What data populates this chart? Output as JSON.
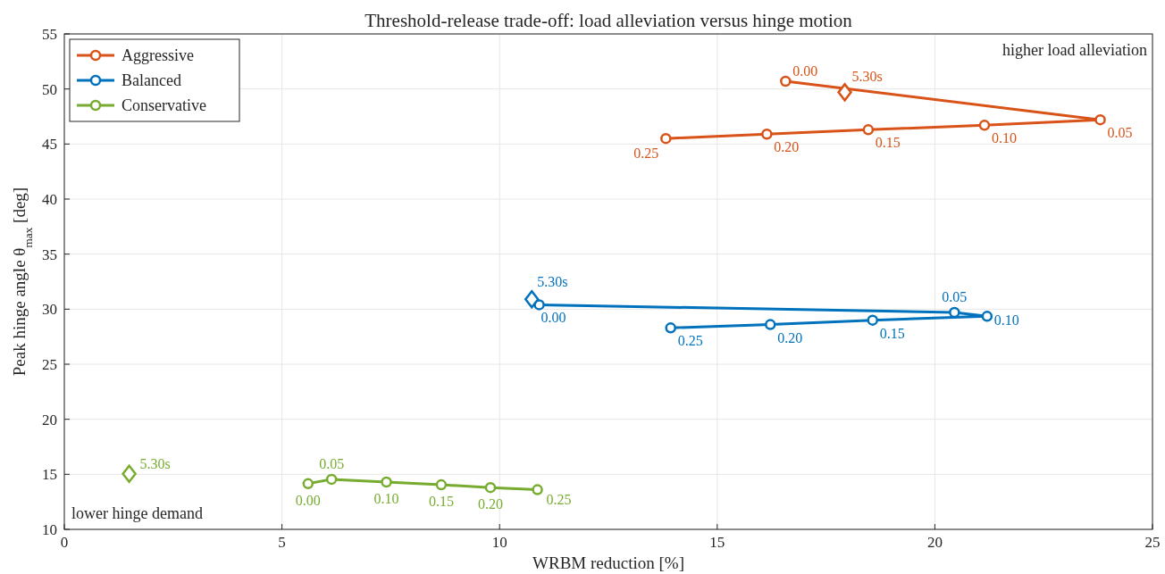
{
  "chart_data": {
    "type": "line",
    "title": "Threshold-release trade-off: load alleviation versus hinge motion",
    "xlabel": "WRBM reduction [%]",
    "ylabel": "Peak hinge angle θ$_{max}$ [deg]",
    "xlim": [
      0,
      25
    ],
    "xticks": [
      0,
      5,
      10,
      15,
      20,
      25
    ],
    "ylim": [
      10,
      55
    ],
    "yticks": [
      10,
      15,
      20,
      25,
      30,
      35,
      40,
      45,
      50,
      55
    ],
    "grid": true,
    "legend": "top left",
    "marker": "circle",
    "line_style": "solid",
    "series": [
      {
        "name": "Aggressive",
        "color": "#d95319",
        "x": [
          16.57,
          23.8,
          21.14,
          18.47,
          16.14,
          13.82
        ],
        "values": [
          50.7,
          47.2,
          46.7,
          46.3,
          45.9,
          45.5
        ]
      },
      {
        "name": "Balanced",
        "color": "#0072bd",
        "x": [
          10.91,
          20.45,
          21.2,
          18.57,
          16.22,
          13.93
        ],
        "values": [
          30.4,
          29.7,
          29.35,
          29.0,
          28.6,
          28.3
        ]
      },
      {
        "name": "Conservative",
        "color": "#77ac30",
        "x": [
          5.6,
          6.14,
          7.4,
          8.66,
          9.79,
          10.87
        ],
        "values": [
          14.15,
          14.55,
          14.3,
          14.05,
          13.8,
          13.6
        ]
      },
      {
        "type": "scatter",
        "marker": "diamond",
        "color": "#d95319",
        "x": [
          17.93
        ],
        "values": [
          49.7
        ]
      },
      {
        "type": "scatter",
        "marker": "diamond",
        "color": "#0072bd",
        "x": [
          10.74
        ],
        "values": [
          30.9
        ]
      },
      {
        "type": "scatter",
        "marker": "diamond",
        "color": "#77ac30",
        "x": [
          1.49
        ],
        "values": [
          15.05
        ]
      }
    ],
    "annotations": [
      {
        "text": "0.00",
        "x": 16.57,
        "y": 50.7
      },
      {
        "text": "0.05",
        "x": 23.8,
        "y": 47.2
      },
      {
        "text": "0.10",
        "x": 21.14,
        "y": 46.7
      },
      {
        "text": "0.15",
        "x": 18.47,
        "y": 46.3
      },
      {
        "text": "0.20",
        "x": 16.14,
        "y": 45.9
      },
      {
        "text": "0.25",
        "x": 13.82,
        "y": 45.5
      },
      {
        "text": "5.30s",
        "x": 17.93,
        "y": 49.7
      },
      {
        "text": "0.00",
        "x": 10.91,
        "y": 30.4
      },
      {
        "text": "0.05",
        "x": 20.45,
        "y": 29.7
      },
      {
        "text": "0.10",
        "x": 21.2,
        "y": 29.35
      },
      {
        "text": "0.15",
        "x": 18.57,
        "y": 29.0
      },
      {
        "text": "0.20",
        "x": 16.22,
        "y": 28.6
      },
      {
        "text": "0.25",
        "x": 13.93,
        "y": 28.3
      },
      {
        "text": "5.30s",
        "x": 10.74,
        "y": 30.9
      },
      {
        "text": "0.00",
        "x": 5.6,
        "y": 14.15
      },
      {
        "text": "0.05",
        "x": 6.14,
        "y": 14.55
      },
      {
        "text": "0.10",
        "x": 7.4,
        "y": 14.3
      },
      {
        "text": "0.15",
        "x": 8.66,
        "y": 14.05
      },
      {
        "text": "0.20",
        "x": 9.79,
        "y": 13.8
      },
      {
        "text": "0.25",
        "x": 10.87,
        "y": 13.6
      },
      {
        "text": "5.30s",
        "x": 1.49,
        "y": 15.05
      },
      "higher load alleviation",
      "lower hinge demand"
    ]
  }
}
